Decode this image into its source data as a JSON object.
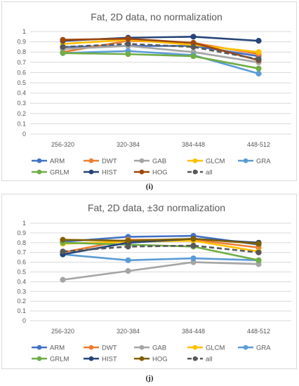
{
  "captions": [
    "(i)",
    "(j)"
  ],
  "chart_data": [
    {
      "type": "line",
      "title": "Fat, 2D data, no normalization",
      "xlabel": "",
      "ylabel": "",
      "categories": [
        "256-320",
        "320-384",
        "384-448",
        "448-512"
      ],
      "ylim": [
        0,
        1
      ],
      "yticks": [
        "0",
        "0.1",
        "0.2",
        "0.3",
        "0.4",
        "0.5",
        "0.6",
        "0.7",
        "0.8",
        "0.9",
        "1"
      ],
      "grid": true,
      "legend": "bottom",
      "series": [
        {
          "name": "ARM",
          "color": "#4472c4",
          "dash": false,
          "values": [
            0.85,
            0.86,
            0.86,
            0.76
          ]
        },
        {
          "name": "DWT",
          "color": "#ed7d31",
          "dash": false,
          "values": [
            0.8,
            0.91,
            0.89,
            0.78
          ]
        },
        {
          "name": "GAB",
          "color": "#a5a5a5",
          "dash": false,
          "values": [
            0.83,
            0.86,
            0.8,
            0.7
          ]
        },
        {
          "name": "GLCM",
          "color": "#ffc000",
          "dash": false,
          "values": [
            0.88,
            0.92,
            0.87,
            0.8
          ]
        },
        {
          "name": "GRA",
          "color": "#5b9bd5",
          "dash": false,
          "values": [
            0.79,
            0.81,
            0.77,
            0.59
          ]
        },
        {
          "name": "GRLM",
          "color": "#70ad47",
          "dash": false,
          "values": [
            0.79,
            0.78,
            0.76,
            0.64
          ]
        },
        {
          "name": "HIST",
          "color": "#264478",
          "dash": false,
          "values": [
            0.91,
            0.94,
            0.95,
            0.91
          ]
        },
        {
          "name": "HOG",
          "color": "#9e480e",
          "dash": false,
          "values": [
            0.92,
            0.93,
            0.89,
            0.72
          ]
        },
        {
          "name": "all",
          "color": "#595959",
          "dash": true,
          "values": [
            0.85,
            0.88,
            0.85,
            0.73
          ]
        }
      ]
    },
    {
      "type": "line",
      "title": "Fat, 2D data, ±3σ normalization",
      "xlabel": "",
      "ylabel": "",
      "categories": [
        "256-320",
        "320-384",
        "384-448",
        "448-512"
      ],
      "ylim": [
        0,
        1
      ],
      "yticks": [
        "0",
        "0.1",
        "0.2",
        "0.3",
        "0.4",
        "0.5",
        "0.6",
        "0.7",
        "0.8",
        "0.9",
        "1"
      ],
      "grid": true,
      "legend": "bottom",
      "series": [
        {
          "name": "ARM",
          "color": "#4472c4",
          "dash": false,
          "values": [
            0.81,
            0.86,
            0.87,
            0.78
          ]
        },
        {
          "name": "DWT",
          "color": "#ed7d31",
          "dash": false,
          "values": [
            0.7,
            0.83,
            0.83,
            0.75
          ]
        },
        {
          "name": "GAB",
          "color": "#a5a5a5",
          "dash": false,
          "values": [
            0.42,
            0.51,
            0.6,
            0.58
          ]
        },
        {
          "name": "GLCM",
          "color": "#ffc000",
          "dash": false,
          "values": [
            0.79,
            0.81,
            0.82,
            0.71
          ]
        },
        {
          "name": "GRA",
          "color": "#5b9bd5",
          "dash": false,
          "values": [
            0.68,
            0.62,
            0.64,
            0.62
          ]
        },
        {
          "name": "GRLM",
          "color": "#70ad47",
          "dash": false,
          "values": [
            0.8,
            0.78,
            0.76,
            0.62
          ]
        },
        {
          "name": "HIST",
          "color": "#264478",
          "dash": false,
          "values": [
            0.68,
            0.8,
            0.84,
            0.8
          ]
        },
        {
          "name": "HOG",
          "color": "#7f6000",
          "dash": false,
          "values": [
            0.83,
            0.82,
            0.84,
            0.79
          ]
        },
        {
          "name": "all",
          "color": "#595959",
          "dash": true,
          "values": [
            0.71,
            0.76,
            0.77,
            0.7
          ]
        }
      ]
    }
  ]
}
